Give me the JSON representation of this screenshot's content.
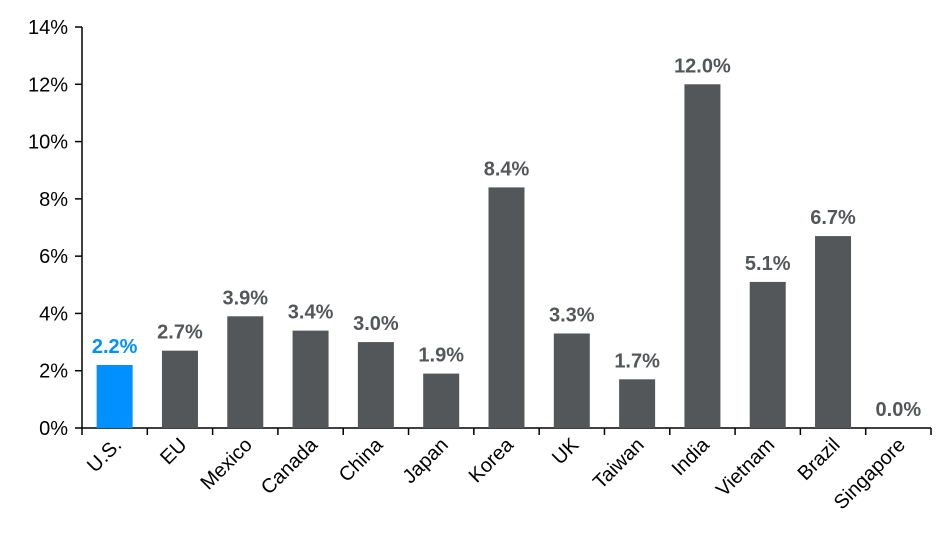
{
  "chart_data": {
    "type": "bar",
    "categories": [
      "U.S.",
      "EU",
      "Mexico",
      "Canada",
      "China",
      "Japan",
      "Korea",
      "UK",
      "Taiwan",
      "India",
      "Vietnam",
      "Brazil",
      "Singapore"
    ],
    "values": [
      2.2,
      2.7,
      3.9,
      3.4,
      3.0,
      1.9,
      8.4,
      3.3,
      1.7,
      12.0,
      5.1,
      6.7,
      0.0
    ],
    "value_labels": [
      "2.2%",
      "2.7%",
      "3.9%",
      "3.4%",
      "3.0%",
      "1.9%",
      "8.4%",
      "3.3%",
      "1.7%",
      "12.0%",
      "5.1%",
      "6.7%",
      "0.0%"
    ],
    "y_ticks": [
      0,
      2,
      4,
      6,
      8,
      10,
      12,
      14
    ],
    "y_tick_labels": [
      "0%",
      "2%",
      "4%",
      "6%",
      "8%",
      "10%",
      "12%",
      "14%"
    ],
    "ylim": [
      0,
      14
    ],
    "title": "",
    "xlabel": "",
    "ylabel": "",
    "grid": false,
    "highlight_category": "U.S.",
    "colors": {
      "default_bar": "#54575a",
      "highlight_bar": "#0090ff",
      "default_label": "#54575a",
      "highlight_label": "#0090ff",
      "axis": "#000000"
    }
  }
}
